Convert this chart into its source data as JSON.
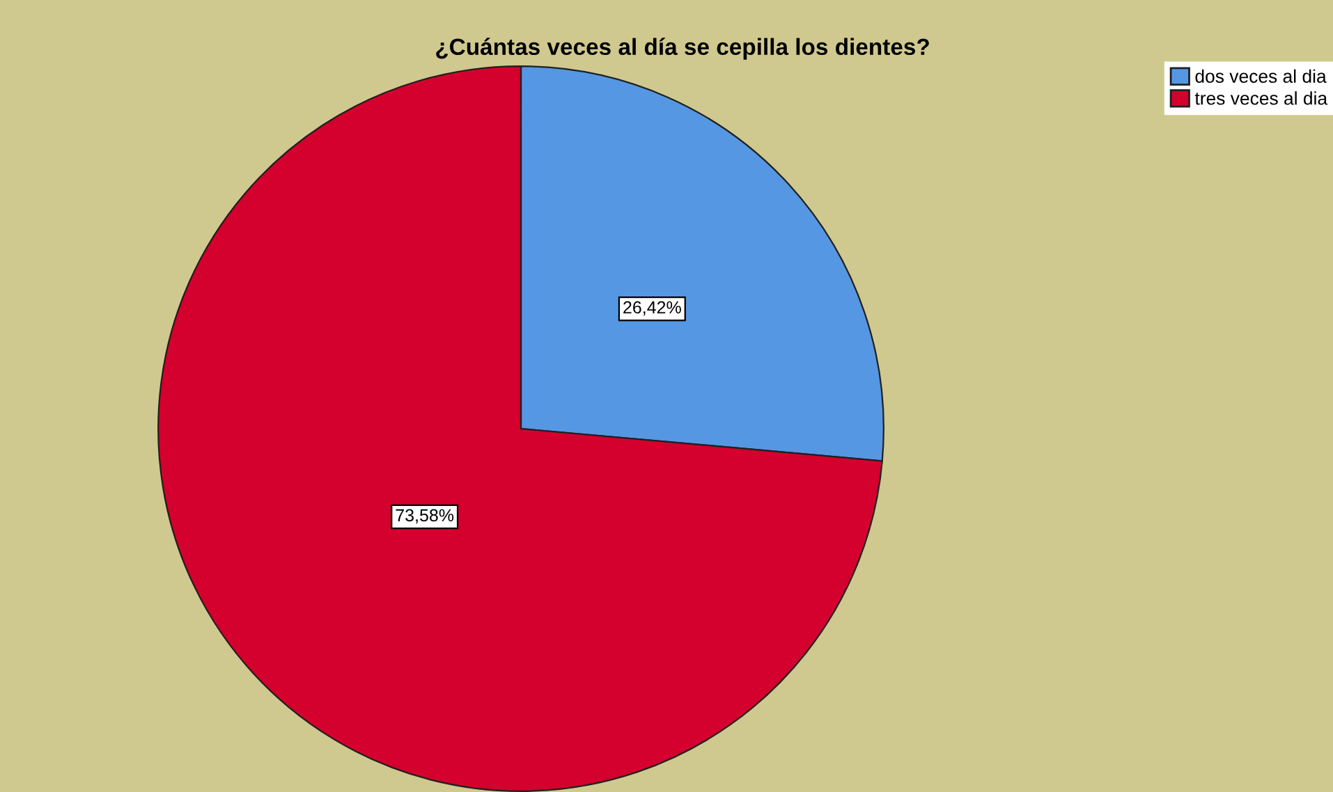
{
  "chart_data": {
    "type": "pie",
    "title": "¿Cuántas veces al día se cepilla los dientes?",
    "categories": [
      "dos veces al dia",
      "tres veces al dia"
    ],
    "values": [
      26.42,
      73.58
    ],
    "colors": [
      "#5597e3",
      "#d4002d"
    ],
    "value_labels": [
      "26,42%",
      "73,58%"
    ],
    "legend": "top right"
  }
}
